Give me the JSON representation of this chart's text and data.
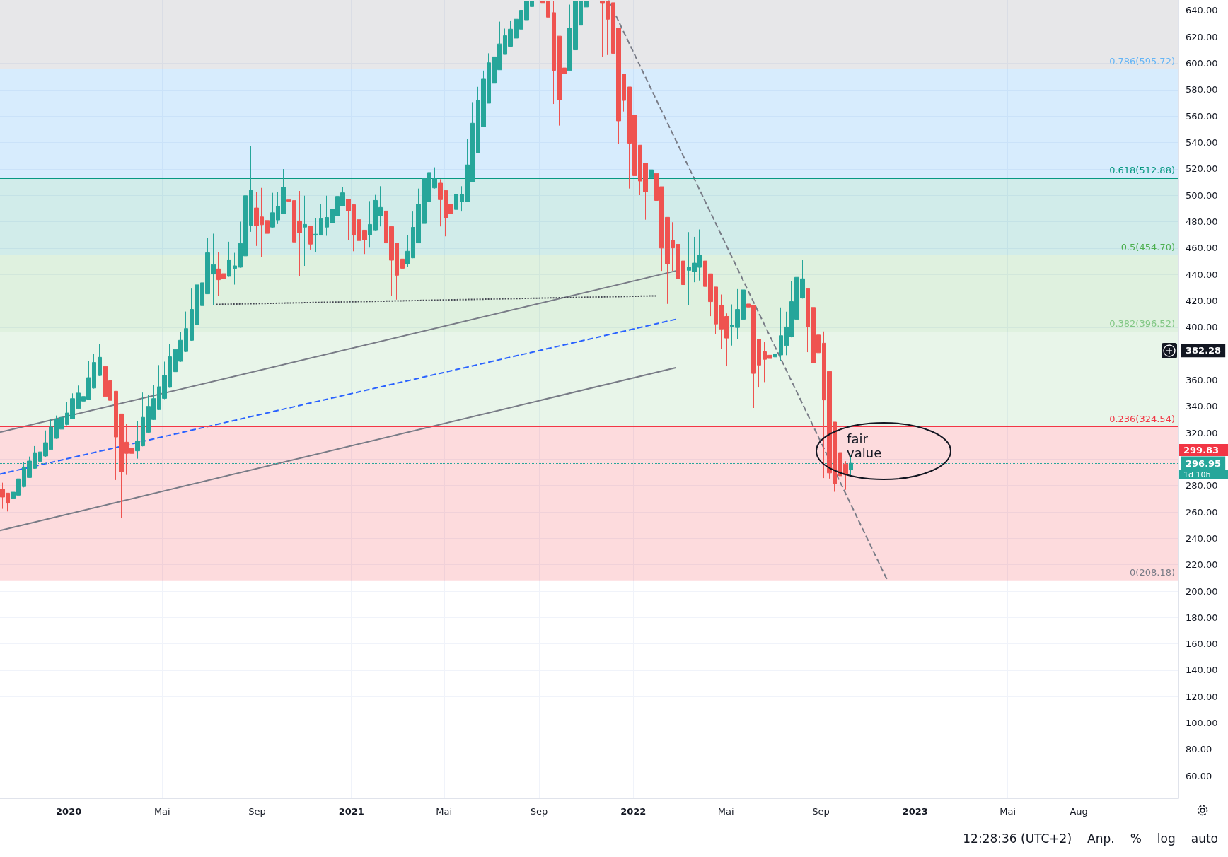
{
  "chart_data": {
    "type": "candlestick",
    "grid": true,
    "xlim": [
      "2019-10-04",
      "2023-12-08"
    ],
    "xticks": [
      {
        "value": "2020-01-01",
        "label": "2020"
      },
      {
        "value": "2020-05-01",
        "label": "Mai"
      },
      {
        "value": "2020-09-01",
        "label": "Sep"
      },
      {
        "value": "2021-01-01",
        "label": "2021"
      },
      {
        "value": "2021-05-01",
        "label": "Mai"
      },
      {
        "value": "2021-09-01",
        "label": "Sep"
      },
      {
        "value": "2022-01-01",
        "label": "2022"
      },
      {
        "value": "2022-05-01",
        "label": "Mai"
      },
      {
        "value": "2022-09-01",
        "label": "Sep"
      },
      {
        "value": "2023-01-01",
        "label": "2023"
      },
      {
        "value": "2023-05-01",
        "label": "Mai"
      },
      {
        "value": "2023-08-01",
        "label": "Aug"
      }
    ],
    "ylim": [
      43,
      648
    ],
    "yticks": [
      {
        "value": 60,
        "label": "60.00"
      },
      {
        "value": 80,
        "label": "80.00"
      },
      {
        "value": 100,
        "label": "100.00"
      },
      {
        "value": 120,
        "label": "120.00"
      },
      {
        "value": 140,
        "label": "140.00"
      },
      {
        "value": 160,
        "label": "160.00"
      },
      {
        "value": 180,
        "label": "180.00"
      },
      {
        "value": 200,
        "label": "200.00"
      },
      {
        "value": 220,
        "label": "220.00"
      },
      {
        "value": 240,
        "label": "240.00"
      },
      {
        "value": 260,
        "label": "260.00"
      },
      {
        "value": 280,
        "label": "280.00"
      },
      {
        "value": 300,
        "label": null
      },
      {
        "value": 320,
        "label": "320.00"
      },
      {
        "value": 340,
        "label": "340.00"
      },
      {
        "value": 360,
        "label": "360.00"
      },
      {
        "value": 380,
        "label": null
      },
      {
        "value": 400,
        "label": "400.00"
      },
      {
        "value": 420,
        "label": "420.00"
      },
      {
        "value": 440,
        "label": "440.00"
      },
      {
        "value": 460,
        "label": "460.00"
      },
      {
        "value": 480,
        "label": "480.00"
      },
      {
        "value": 500,
        "label": "500.00"
      },
      {
        "value": 520,
        "label": "520.00"
      },
      {
        "value": 540,
        "label": "540.00"
      },
      {
        "value": 560,
        "label": "560.00"
      },
      {
        "value": 580,
        "label": "580.00"
      },
      {
        "value": 600,
        "label": "600.00"
      },
      {
        "value": 620,
        "label": "620.00"
      },
      {
        "value": 640,
        "label": "640.00"
      }
    ],
    "x": [
      "2019-10-07",
      "2019-10-14",
      "2019-10-21",
      "2019-10-28",
      "2019-11-04",
      "2019-11-11",
      "2019-11-18",
      "2019-11-25",
      "2019-12-02",
      "2019-12-09",
      "2019-12-16",
      "2019-12-23",
      "2019-12-30",
      "2020-01-06",
      "2020-01-13",
      "2020-01-20",
      "2020-01-27",
      "2020-02-03",
      "2020-02-10",
      "2020-02-17",
      "2020-02-24",
      "2020-03-02",
      "2020-03-09",
      "2020-03-16",
      "2020-03-23",
      "2020-03-30",
      "2020-04-06",
      "2020-04-13",
      "2020-04-20",
      "2020-04-27",
      "2020-05-04",
      "2020-05-11",
      "2020-05-18",
      "2020-05-25",
      "2020-06-01",
      "2020-06-08",
      "2020-06-15",
      "2020-06-22",
      "2020-06-29",
      "2020-07-06",
      "2020-07-13",
      "2020-07-20",
      "2020-07-27",
      "2020-08-03",
      "2020-08-10",
      "2020-08-17",
      "2020-08-24",
      "2020-08-31",
      "2020-09-07",
      "2020-09-14",
      "2020-09-21",
      "2020-09-28",
      "2020-10-05",
      "2020-10-12",
      "2020-10-19",
      "2020-10-26",
      "2020-11-02",
      "2020-11-09",
      "2020-11-16",
      "2020-11-23",
      "2020-11-30",
      "2020-12-07",
      "2020-12-14",
      "2020-12-21",
      "2020-12-28",
      "2021-01-04",
      "2021-01-11",
      "2021-01-18",
      "2021-01-25",
      "2021-02-01",
      "2021-02-08",
      "2021-02-15",
      "2021-02-22",
      "2021-03-01",
      "2021-03-08",
      "2021-03-15",
      "2021-03-22",
      "2021-03-29",
      "2021-04-05",
      "2021-04-12",
      "2021-04-19",
      "2021-04-26",
      "2021-05-03",
      "2021-05-10",
      "2021-05-17",
      "2021-05-24",
      "2021-05-31",
      "2021-06-07",
      "2021-06-14",
      "2021-06-21",
      "2021-06-28",
      "2021-07-05",
      "2021-07-12",
      "2021-07-19",
      "2021-07-26",
      "2021-08-02",
      "2021-08-09",
      "2021-08-16",
      "2021-08-23",
      "2021-09-06",
      "2021-09-13",
      "2021-09-20",
      "2021-09-27",
      "2021-10-04",
      "2021-10-11",
      "2021-10-18",
      "2021-10-25",
      "2021-11-01",
      "2021-11-22",
      "2021-11-29",
      "2021-12-06",
      "2021-12-13",
      "2021-12-20",
      "2021-12-27",
      "2022-01-03",
      "2022-01-10",
      "2022-01-17",
      "2022-01-24",
      "2022-01-31",
      "2022-02-07",
      "2022-02-14",
      "2022-02-21",
      "2022-02-28",
      "2022-03-07",
      "2022-03-14",
      "2022-03-21",
      "2022-03-28",
      "2022-04-04",
      "2022-04-11",
      "2022-04-18",
      "2022-04-25",
      "2022-05-02",
      "2022-05-09",
      "2022-05-16",
      "2022-05-23",
      "2022-05-30",
      "2022-06-06",
      "2022-06-13",
      "2022-06-20",
      "2022-06-27",
      "2022-07-04",
      "2022-07-11",
      "2022-07-18",
      "2022-07-25",
      "2022-08-01",
      "2022-08-08",
      "2022-08-15",
      "2022-08-22",
      "2022-08-29",
      "2022-09-05",
      "2022-09-12",
      "2022-09-19",
      "2022-09-26",
      "2022-10-03",
      "2022-10-10"
    ],
    "series": [
      {
        "colors": [
          "#ef5350",
          "#ef5350",
          "#26a69a",
          "#26a69a",
          "#26a69a",
          "#26a69a",
          "#26a69a",
          "#26a69a",
          "#26a69a",
          "#26a69a",
          "#26a69a",
          "#26a69a",
          "#26a69a",
          "#26a69a",
          "#26a69a",
          "#26a69a",
          "#26a69a",
          "#26a69a",
          "#26a69a",
          "#ef5350",
          "#ef5350",
          "#ef5350",
          "#ef5350",
          "#ef5350",
          "#ef5350",
          "#26a69a",
          "#26a69a",
          "#26a69a",
          "#26a69a",
          "#26a69a",
          "#26a69a",
          "#26a69a",
          "#26a69a",
          "#26a69a",
          "#26a69a",
          "#26a69a",
          "#26a69a",
          "#26a69a",
          "#26a69a",
          "#26a69a",
          "#ef5350",
          "#ef5350",
          "#26a69a",
          "#26a69a",
          "#26a69a",
          "#26a69a",
          "#26a69a",
          "#ef5350",
          "#ef5350",
          "#ef5350",
          "#26a69a",
          "#26a69a",
          "#26a69a",
          "#ef5350",
          "#ef5350",
          "#ef5350",
          "#26a69a",
          "#ef5350",
          "#26a69a",
          "#26a69a",
          "#26a69a",
          "#26a69a",
          "#26a69a",
          "#26a69a",
          "#ef5350",
          "#ef5350",
          "#ef5350",
          "#ef5350",
          "#26a69a",
          "#26a69a",
          "#26a69a",
          "#ef5350",
          "#ef5350",
          "#ef5350",
          "#ef5350",
          "#26a69a",
          "#26a69a",
          "#26a69a",
          "#26a69a",
          "#26a69a",
          "#26a69a",
          "#ef5350",
          "#ef5350",
          "#ef5350",
          "#26a69a",
          "#26a69a",
          "#26a69a",
          "#26a69a",
          "#26a69a",
          "#26a69a",
          "#26a69a",
          "#26a69a",
          "#26a69a",
          "#26a69a",
          "#26a69a",
          "#26a69a",
          "#26a69a",
          "#26a69a",
          "#26a69a",
          "#ef5350",
          "#ef5350",
          "#ef5350",
          "#ef5350",
          "#ef5350",
          "#26a69a",
          "#26a69a",
          "#26a69a",
          "#26a69a",
          "#ef5350",
          "#ef5350",
          "#ef5350",
          "#ef5350",
          "#ef5350",
          "#ef5350",
          "#ef5350",
          "#ef5350",
          "#ef5350",
          "#26a69a",
          "#ef5350",
          "#ef5350",
          "#ef5350",
          "#ef5350",
          "#ef5350",
          "#ef5350",
          "#26a69a",
          "#26a69a",
          "#26a69a",
          "#ef5350",
          "#ef5350",
          "#ef5350",
          "#ef5350",
          "#ef5350",
          "#26a69a",
          "#26a69a",
          "#26a69a",
          "#ef5350",
          "#ef5350",
          "#ef5350",
          "#ef5350",
          "#ef5350",
          "#26a69a",
          "#26a69a",
          "#26a69a",
          "#26a69a",
          "#26a69a",
          "#26a69a",
          "#ef5350",
          "#ef5350",
          "#ef5350",
          "#ef5350",
          "#ef5350",
          "#ef5350",
          "#ef5350",
          "#ef5350",
          "#26a69a"
        ],
        "ohlc": [
          [
            277.2,
            282.2,
            262.4,
            271.3
          ],
          [
            274.3,
            274.3,
            260.4,
            266.7
          ],
          [
            270.4,
            281.8,
            269.0,
            275.0
          ],
          [
            272.7,
            293.1,
            272.3,
            285.1
          ],
          [
            279.2,
            297.6,
            278.6,
            294.1
          ],
          [
            286.1,
            302.0,
            286.0,
            298.6
          ],
          [
            293.1,
            309.9,
            292.7,
            304.9
          ],
          [
            298.4,
            309.9,
            297.6,
            305.5
          ],
          [
            302.4,
            321.8,
            301.6,
            312.5
          ],
          [
            307.3,
            330.1,
            306.7,
            324.4
          ],
          [
            315.8,
            333.1,
            315.4,
            330.3
          ],
          [
            322.8,
            334.7,
            322.4,
            331.7
          ],
          [
            326.3,
            343.6,
            325.7,
            335.0
          ],
          [
            330.7,
            349.9,
            330.3,
            345.9
          ],
          [
            338.4,
            355.8,
            338.0,
            350.1
          ],
          [
            344.0,
            357.0,
            340.6,
            347.5
          ],
          [
            345.5,
            374.6,
            345.1,
            361.8
          ],
          [
            353.9,
            379.6,
            353.5,
            373.3
          ],
          [
            363.4,
            387.1,
            363.0,
            377.2
          ],
          [
            370.3,
            370.3,
            324.8,
            347.5
          ],
          [
            359.4,
            365.3,
            326.8,
            344.6
          ],
          [
            351.5,
            351.5,
            284.2,
            316.8
          ],
          [
            334.3,
            334.3,
            255.4,
            290.5
          ],
          [
            312.9,
            327.0,
            288.1,
            304.4
          ],
          [
            308.3,
            326.7,
            290.1,
            304.4
          ],
          [
            306.3,
            328.7,
            300.4,
            313.9
          ],
          [
            310.1,
            350.5,
            309.7,
            331.7
          ],
          [
            320.4,
            348.5,
            319.8,
            340.0
          ],
          [
            330.1,
            356.4,
            329.7,
            345.9
          ],
          [
            337.6,
            371.3,
            337.2,
            354.9
          ],
          [
            346.1,
            373.9,
            345.5,
            363.4
          ],
          [
            354.5,
            387.1,
            354.1,
            377.6
          ],
          [
            366.3,
            391.5,
            362.0,
            383.2
          ],
          [
            374.2,
            396.4,
            373.8,
            390.1
          ],
          [
            381.6,
            411.9,
            381.2,
            399.0
          ],
          [
            390.1,
            429.3,
            389.7,
            413.5
          ],
          [
            401.9,
            446.5,
            401.6,
            432.1
          ],
          [
            416.4,
            448.5,
            416.0,
            433.7
          ],
          [
            425.3,
            467.9,
            425.1,
            456.4
          ],
          [
            440.6,
            470.9,
            416.8,
            447.5
          ],
          [
            444.2,
            457.0,
            423.8,
            436.0
          ],
          [
            440.6,
            445.0,
            427.3,
            436.6
          ],
          [
            438.6,
            464.8,
            438.2,
            451.1
          ],
          [
            444.6,
            456.4,
            432.3,
            446.5
          ],
          [
            445.5,
            480.0,
            445.1,
            463.5
          ],
          [
            454.1,
            533.7,
            453.7,
            499.7
          ],
          [
            477.3,
            537.3,
            472.3,
            503.8
          ],
          [
            490.4,
            502.4,
            461.6,
            476.8
          ],
          [
            483.6,
            505.6,
            453.2,
            477.7
          ],
          [
            480.9,
            488.6,
            457.3,
            471.1
          ],
          [
            475.9,
            501.9,
            475.5,
            486.8
          ],
          [
            481.3,
            502.4,
            478.2,
            491.7
          ],
          [
            485.9,
            519.9,
            485.7,
            506.0
          ],
          [
            496.5,
            508.3,
            479.7,
            495.6
          ],
          [
            496.0,
            496.0,
            442.8,
            464.6
          ],
          [
            480.6,
            503.3,
            438.8,
            471.6
          ],
          [
            475.9,
            499.7,
            446.5,
            477.9
          ],
          [
            476.8,
            476.8,
            458.9,
            463.0
          ],
          [
            469.8,
            482.7,
            456.7,
            470.5
          ],
          [
            469.8,
            493.4,
            469.6,
            482.2
          ],
          [
            475.9,
            499.7,
            469.3,
            483.2
          ],
          [
            479.1,
            504.5,
            475.9,
            489.5
          ],
          [
            484.5,
            507.2,
            484.1,
            499.2
          ],
          [
            492.0,
            506.0,
            491.7,
            501.9
          ],
          [
            497.0,
            497.0,
            466.2,
            488.1
          ],
          [
            492.9,
            492.9,
            457.6,
            469.8
          ],
          [
            481.5,
            481.5,
            453.5,
            465.7
          ],
          [
            473.6,
            473.6,
            455.5,
            466.2
          ],
          [
            470.0,
            495.6,
            460.3,
            477.9
          ],
          [
            473.8,
            500.3,
            473.4,
            496.1
          ],
          [
            484.5,
            506.9,
            476.4,
            490.8
          ],
          [
            488.1,
            488.1,
            450.1,
            463.9
          ],
          [
            476.3,
            476.3,
            424.0,
            450.8
          ],
          [
            463.9,
            463.9,
            420.9,
            439.4
          ],
          [
            451.7,
            457.6,
            437.9,
            444.7
          ],
          [
            448.1,
            469.8,
            445.5,
            457.6
          ],
          [
            452.6,
            487.7,
            452.3,
            475.7
          ],
          [
            463.9,
            505.1,
            463.9,
            493.4
          ],
          [
            478.6,
            526.0,
            478.2,
            512.6
          ],
          [
            495.2,
            524.2,
            494.7,
            517.3
          ],
          [
            505.6,
            521.2,
            505.1,
            512.6
          ],
          [
            509.2,
            512.2,
            476.4,
            496.7
          ],
          [
            503.7,
            503.7,
            468.9,
            482.9
          ],
          [
            493.4,
            493.4,
            472.9,
            485.9
          ],
          [
            489.3,
            511.4,
            489.0,
            500.6
          ],
          [
            495.2,
            506.9,
            487.7,
            500.6
          ],
          [
            495.2,
            542.7,
            494.9,
            523.0
          ],
          [
            510.1,
            570.6,
            510.1,
            554.6
          ],
          [
            532.3,
            582.2,
            532.3,
            571.9
          ],
          [
            551.9,
            594.5,
            551.9,
            588.0
          ],
          [
            569.8,
            607.6,
            569.8,
            600.4
          ],
          [
            584.9,
            612.0,
            584.9,
            604.9
          ],
          [
            595.1,
            631.6,
            595.1,
            614.7
          ],
          [
            606.7,
            626.3,
            606.7,
            620.9
          ],
          [
            612.9,
            632.5,
            612.9,
            625.9
          ],
          [
            619.1,
            638.4,
            619.1,
            633.4
          ],
          [
            625.9,
            647.0,
            625.9,
            640.2
          ],
          [
            633.0,
            647.0,
            633.0,
            647.0
          ],
          [
            643.0,
            647.0,
            643.0,
            647.0
          ],
          [
            647.0,
            647.0,
            641.0,
            646.0
          ],
          [
            647.0,
            647.0,
            608.0,
            635.0
          ],
          [
            638.4,
            647.0,
            569.2,
            594.7
          ],
          [
            620.6,
            620.6,
            552.8,
            572.4
          ],
          [
            596.5,
            612.5,
            571.9,
            592.0
          ],
          [
            594.5,
            644.5,
            594.1,
            626.8
          ],
          [
            610.2,
            647.0,
            610.2,
            647.0
          ],
          [
            628.9,
            647.0,
            628.9,
            647.0
          ],
          [
            642.7,
            647.0,
            642.7,
            647.0
          ],
          [
            647.0,
            647.0,
            604.9,
            645.9
          ],
          [
            647.0,
            647.0,
            606.3,
            633.4
          ],
          [
            645.9,
            647.0,
            545.7,
            607.6
          ],
          [
            626.8,
            626.8,
            538.9,
            556.4
          ],
          [
            591.9,
            591.9,
            563.5,
            571.9
          ],
          [
            582.1,
            582.1,
            505.1,
            539.5
          ],
          [
            560.9,
            560.9,
            497.9,
            514.9
          ],
          [
            538.0,
            538.0,
            500.1,
            510.8
          ],
          [
            524.3,
            524.3,
            481.5,
            502.7
          ],
          [
            513.1,
            541.1,
            504.2,
            519.3
          ],
          [
            516.6,
            522.9,
            473.3,
            496.1
          ],
          [
            506.5,
            506.5,
            442.7,
            460.0
          ],
          [
            483.3,
            483.3,
            417.7,
            448.1
          ],
          [
            465.8,
            479.6,
            442.7,
            460.1
          ],
          [
            462.8,
            462.8,
            415.9,
            436.8
          ],
          [
            450.2,
            450.2,
            408.8,
            432.3
          ],
          [
            443.1,
            472.1,
            416.8,
            445.4
          ],
          [
            442.1,
            468.5,
            434.1,
            448.6
          ],
          [
            445.4,
            474.1,
            435.4,
            454.8
          ],
          [
            450.2,
            450.2,
            415.6,
            430.9
          ],
          [
            440.5,
            440.5,
            408.4,
            419.4
          ],
          [
            430.5,
            430.5,
            394.8,
            402.5
          ],
          [
            416.6,
            424.8,
            383.8,
            398.7
          ],
          [
            408.2,
            410.5,
            370.4,
            391.8
          ],
          [
            400.7,
            417.3,
            386.1,
            401.6
          ],
          [
            399.8,
            428.9,
            391.2,
            413.5
          ],
          [
            406.1,
            442.3,
            405.7,
            428.3
          ],
          [
            417.6,
            440.0,
            415.0,
            415.3
          ],
          [
            416.6,
            416.6,
            338.8,
            365.0
          ],
          [
            390.9,
            390.9,
            354.3,
            371.3
          ],
          [
            381.4,
            389.1,
            358.4,
            375.7
          ],
          [
            378.8,
            388.2,
            360.6,
            376.3
          ],
          [
            377.5,
            391.8,
            362.4,
            379.8
          ],
          [
            379.0,
            415.0,
            374.5,
            393.6
          ],
          [
            386.1,
            411.8,
            378.8,
            400.2
          ],
          [
            392.7,
            434.9,
            392.3,
            419.4
          ],
          [
            406.1,
            446.5,
            405.7,
            437.8
          ],
          [
            422.1,
            451.2,
            421.7,
            436.7
          ],
          [
            429.2,
            429.2,
            381.1,
            400.2
          ],
          [
            415.0,
            415.0,
            362.0,
            373.1
          ],
          [
            394.1,
            396.2,
            365.6,
            380.7
          ],
          [
            387.9,
            396.8,
            285.7,
            344.9
          ],
          [
            366.5,
            366.5,
            285.3,
            289.6
          ],
          [
            328.1,
            328.1,
            275.3,
            281.2
          ],
          [
            305.0,
            305.7,
            277.6,
            287.4
          ],
          [
            296.4,
            298.5,
            276.8,
            288.3
          ],
          [
            291.9,
            303.5,
            287.4,
            296.95
          ]
        ]
      },
      {
        "type": "line",
        "color": "#787b86",
        "line_style": "solid",
        "marker": "none",
        "x": [
          "2019-10-04",
          "2022-02-25"
        ],
        "values": [
          320.4,
          442.7
        ]
      },
      {
        "type": "line",
        "color": "#787b86",
        "line_style": "solid",
        "marker": "none",
        "x": [
          "2019-10-04",
          "2022-02-25"
        ],
        "values": [
          246.0,
          369.3
        ]
      },
      {
        "type": "line",
        "color": "#2962ff",
        "line_style": "dashed",
        "marker": "none",
        "x": [
          "2019-10-04",
          "2022-02-25"
        ],
        "values": [
          288.7,
          406.0
        ]
      },
      {
        "type": "line",
        "color": "#434651",
        "line_style": "dotted",
        "marker": "none",
        "x": [
          "2020-07-10",
          "2022-02-01"
        ],
        "values": [
          417.3,
          423.8
        ]
      },
      {
        "type": "line",
        "color": "#787b86",
        "line_style": "dashed",
        "marker": "none",
        "x": [
          "2021-11-30",
          "2022-11-26"
        ],
        "values": [
          647.7,
          208.2
        ]
      }
    ],
    "bands": [
      {
        "axis": "y",
        "from": 595.72,
        "to": 648,
        "color": "#787b86"
      },
      {
        "axis": "y",
        "from": 512.88,
        "to": 595.72,
        "color": "#2196f3"
      },
      {
        "axis": "y",
        "from": 454.7,
        "to": 512.88,
        "color": "#009688"
      },
      {
        "axis": "y",
        "from": 396.52,
        "to": 454.7,
        "color": "#4caf50"
      },
      {
        "axis": "y",
        "from": 324.54,
        "to": 396.52,
        "color": "#81c784"
      },
      {
        "axis": "y",
        "from": 208.18,
        "to": 324.54,
        "color": "#f23645"
      }
    ],
    "ref_lines": [
      {
        "axis": "y",
        "value": 595.72,
        "label": "0.786(595.72)",
        "color": "#64b5f6",
        "line_style": "solid"
      },
      {
        "axis": "y",
        "value": 512.88,
        "label": "0.618(512.88)",
        "color": "#089981",
        "line_style": "solid"
      },
      {
        "axis": "y",
        "value": 454.7,
        "label": "0.5(454.70)",
        "color": "#4caf50",
        "line_style": "solid"
      },
      {
        "axis": "y",
        "value": 396.52,
        "label": "0.382(396.52)",
        "color": "#81c784",
        "line_style": "solid"
      },
      {
        "axis": "y",
        "value": 324.54,
        "label": "0.236(324.54)",
        "color": "#f23645",
        "line_style": "solid"
      },
      {
        "axis": "y",
        "value": 208.18,
        "label": "0(208.18)",
        "color": "#787b86",
        "line_style": "solid"
      },
      {
        "axis": "y",
        "value": 382.28,
        "label": "382.28",
        "color": "#131722",
        "line_style": "dashed"
      },
      {
        "axis": "y",
        "value": 296.95,
        "label": "296.95",
        "color": "#26a69a",
        "line_style": "dotted"
      }
    ],
    "annotations": [
      "fair value",
      "299.83",
      "1d 10h",
      "12:28:36 (UTC+2)",
      "Anp.",
      "%",
      "log",
      "auto"
    ]
  }
}
